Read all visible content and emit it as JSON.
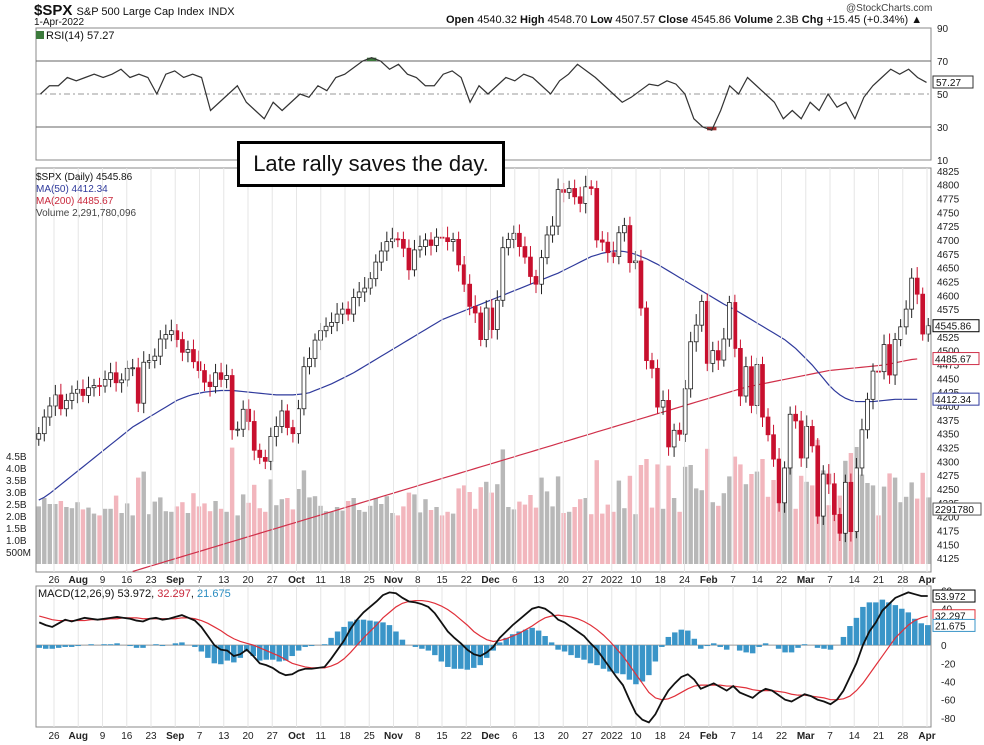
{
  "header": {
    "symbol": "$SPX",
    "name": "S&P 500 Large Cap Index",
    "exchange": "INDX",
    "date": "1-Apr-2022",
    "open_label": "Open",
    "open": "4540.32",
    "high_label": "High",
    "high": "4548.70",
    "low_label": "Low",
    "low": "4507.57",
    "close_label": "Close",
    "close": "4545.86",
    "volume_label": "Volume",
    "volume": "2.3B",
    "chg_label": "Chg",
    "chg": "+15.45 (+0.34%)",
    "chg_arrow": "▲",
    "copyright": "@StockCharts.com"
  },
  "annotation": "Late rally saves the day.",
  "rsi_panel": {
    "label": "RSI(14) 57.27",
    "value_box": "57.27"
  },
  "price_panel": {
    "legend_main": "$SPX (Daily) 4545.86",
    "legend_ma50": "MA(50) 4412.34",
    "legend_ma200": "MA(200) 4485.67",
    "legend_volume": "Volume 2,291,780,096",
    "box_close": "4545.86",
    "box_ma200": "4485.67",
    "box_ma50": "4412.34",
    "box_volume": "2291780"
  },
  "macd_panel": {
    "label_prefix": "MACD(12,26,9)",
    "macd": "53.972",
    "signal": "32.297",
    "hist": "21.675",
    "box_macd": "53.972",
    "box_signal": "32.297",
    "box_hist": "21.675"
  },
  "colors": {
    "up": "#ffffff",
    "down": "#c8102e",
    "ma50": "#2f3a9c",
    "ma200": "#d0304a",
    "vol_up": "#b8b8b8",
    "vol_down": "#f2b6bd",
    "macd_line": "#111111",
    "signal_line": "#e0303a",
    "hist": "#3a95c8",
    "rsi_fill_high": "#3c7a3c",
    "rsi_fill_low": "#a03030"
  },
  "chart_data": [
    {
      "type": "line",
      "panel": "rsi",
      "title": "RSI(14) 57.27",
      "ylim": [
        10,
        90
      ],
      "y_ticks": [
        "90",
        "70",
        "50",
        "30",
        "10"
      ],
      "reference_lines": [
        70,
        50,
        30
      ],
      "x_ticks": [],
      "values": [
        50,
        55,
        55,
        60,
        58,
        60,
        62,
        60,
        62,
        65,
        60,
        62,
        60,
        50,
        62,
        64,
        60,
        62,
        60,
        40,
        45,
        50,
        55,
        45,
        40,
        35,
        45,
        40,
        45,
        50,
        48,
        55,
        52,
        60,
        62,
        66,
        70,
        72,
        70,
        65,
        68,
        62,
        60,
        55,
        55,
        62,
        64,
        60,
        45,
        55,
        50,
        55,
        60,
        58,
        62,
        60,
        55,
        50,
        58,
        62,
        68,
        64,
        60,
        55,
        50,
        45,
        48,
        52,
        56,
        55,
        58,
        56,
        50,
        35,
        30,
        28,
        40,
        55,
        50,
        60,
        55,
        50,
        45,
        35,
        40,
        35,
        45,
        40,
        50,
        42,
        45,
        35,
        48,
        55,
        60,
        65,
        62,
        65,
        60,
        57
      ]
    },
    {
      "type": "candlestick",
      "panel": "price",
      "title": "$SPX (Daily) 4545.86",
      "ylim": [
        4100,
        4830
      ],
      "y_ticks": [
        "4825",
        "4800",
        "4775",
        "4750",
        "4725",
        "4700",
        "4675",
        "4650",
        "4625",
        "4600",
        "4575",
        "4550",
        "4525",
        "4500",
        "4475",
        "4450",
        "4425",
        "4400",
        "4375",
        "4350",
        "4325",
        "4300",
        "4275",
        "4250",
        "4225",
        "4200",
        "4175",
        "4150",
        "4125"
      ],
      "x_ticks": [
        "26",
        "Aug",
        "9",
        "16",
        "23",
        "Sep",
        "7",
        "13",
        "20",
        "27",
        "Oct",
        "11",
        "18",
        "25",
        "Nov",
        "8",
        "15",
        "22",
        "Dec",
        "6",
        "13",
        "20",
        "27",
        "2022",
        "10",
        "18",
        "24",
        "Feb",
        "7",
        "14",
        "22",
        "Mar",
        "7",
        "14",
        "21",
        "28",
        "Apr"
      ],
      "close": [
        4350,
        4380,
        4400,
        4420,
        4395,
        4410,
        4423,
        4430,
        4419,
        4433,
        4437,
        4436,
        4448,
        4460,
        4442,
        4447,
        4468,
        4469,
        4405,
        4479,
        4482,
        4490,
        4521,
        4529,
        4536,
        4520,
        4497,
        4502,
        4480,
        4464,
        4443,
        4435,
        4460,
        4448,
        4455,
        4357,
        4358,
        4394,
        4372,
        4320,
        4307,
        4300,
        4345,
        4363,
        4391,
        4361,
        4350,
        4395,
        4471,
        4486,
        4519,
        4536,
        4544,
        4551,
        4566,
        4575,
        4566,
        4596,
        4606,
        4613,
        4630,
        4660,
        4680,
        4697,
        4702,
        4701,
        4685,
        4646,
        4682,
        4688,
        4700,
        4690,
        4705,
        4704,
        4697,
        4701,
        4655,
        4620,
        4580,
        4568,
        4520,
        4577,
        4538,
        4591,
        4686,
        4701,
        4712,
        4688,
        4669,
        4634,
        4620,
        4668,
        4709,
        4725,
        4791,
        4786,
        4793,
        4778,
        4766,
        4796,
        4793,
        4700,
        4696,
        4677,
        4670,
        4713,
        4726,
        4659,
        4662,
        4577,
        4482,
        4468,
        4398,
        4410,
        4326,
        4356,
        4349,
        4431,
        4516,
        4546,
        4589,
        4477,
        4500,
        4483,
        4521,
        4587,
        4504,
        4418,
        4471,
        4401,
        4475,
        4380,
        4348,
        4304,
        4225,
        4288,
        4385,
        4373,
        4306,
        4363,
        4328,
        4201,
        4277,
        4259,
        4204,
        4170,
        4262,
        4173,
        4288,
        4357,
        4412,
        4463,
        4462,
        4511,
        4456,
        4520,
        4543,
        4575,
        4631,
        4602,
        4530,
        4545
      ],
      "ma50": [
        4230,
        4235,
        4242,
        4250,
        4258,
        4266,
        4274,
        4282,
        4290,
        4298,
        4306,
        4314,
        4322,
        4330,
        4338,
        4346,
        4354,
        4362,
        4368,
        4374,
        4380,
        4386,
        4392,
        4398,
        4404,
        4410,
        4414,
        4418,
        4421,
        4423,
        4425,
        4426,
        4427,
        4428,
        4428,
        4428,
        4427,
        4426,
        4425,
        4424,
        4423,
        4422,
        4421,
        4420,
        4420,
        4420,
        4420,
        4421,
        4422,
        4424,
        4428,
        4432,
        4436,
        4440,
        4445,
        4450,
        4455,
        4460,
        4466,
        4472,
        4478,
        4484,
        4490,
        4496,
        4502,
        4508,
        4514,
        4520,
        4526,
        4532,
        4538,
        4544,
        4550,
        4556,
        4560,
        4564,
        4568,
        4572,
        4576,
        4580,
        4584,
        4588,
        4592,
        4596,
        4600,
        4604,
        4608,
        4612,
        4616,
        4620,
        4624,
        4628,
        4632,
        4636,
        4640,
        4645,
        4650,
        4655,
        4660,
        4665,
        4670,
        4673,
        4676,
        4678,
        4680,
        4680,
        4679,
        4677,
        4674,
        4670,
        4666,
        4661,
        4656,
        4650,
        4644,
        4638,
        4632,
        4626,
        4620,
        4614,
        4608,
        4602,
        4596,
        4590,
        4584,
        4579,
        4574,
        4568,
        4562,
        4556,
        4550,
        4544,
        4538,
        4532,
        4526,
        4520,
        4512,
        4504,
        4494,
        4484,
        4474,
        4462,
        4450,
        4438,
        4428,
        4420,
        4414,
        4410,
        4408,
        4408,
        4408,
        4408,
        4409,
        4410,
        4411,
        4412,
        4412,
        4412,
        4412,
        4412
      ],
      "ma200": [
        4050,
        4053,
        4056,
        4059,
        4062,
        4065,
        4068,
        4071,
        4074,
        4077,
        4080,
        4083,
        4086,
        4089,
        4092,
        4095,
        4098,
        4101,
        4104,
        4107,
        4110,
        4113,
        4116,
        4119,
        4122,
        4125,
        4128,
        4131,
        4134,
        4137,
        4140,
        4143,
        4146,
        4149,
        4152,
        4155,
        4158,
        4161,
        4164,
        4167,
        4170,
        4173,
        4176,
        4179,
        4182,
        4185,
        4188,
        4191,
        4194,
        4197,
        4200,
        4203,
        4206,
        4209,
        4212,
        4215,
        4218,
        4221,
        4224,
        4227,
        4230,
        4233,
        4236,
        4239,
        4242,
        4245,
        4248,
        4251,
        4254,
        4257,
        4260,
        4263,
        4266,
        4269,
        4272,
        4275,
        4278,
        4281,
        4284,
        4287,
        4290,
        4293,
        4296,
        4299,
        4302,
        4305,
        4308,
        4311,
        4314,
        4317,
        4320,
        4323,
        4326,
        4329,
        4332,
        4335,
        4338,
        4341,
        4344,
        4347,
        4350,
        4353,
        4356,
        4359,
        4362,
        4365,
        4368,
        4371,
        4374,
        4377,
        4380,
        4383,
        4386,
        4389,
        4392,
        4395,
        4398,
        4401,
        4404,
        4407,
        4410,
        4413,
        4416,
        4419,
        4422,
        4425,
        4428,
        4431,
        4434,
        4436,
        4438,
        4440,
        4442,
        4444,
        4446,
        4448,
        4450,
        4452,
        4454,
        4456,
        4458,
        4460,
        4462,
        4464,
        4465,
        4466,
        4467,
        4468,
        4469,
        4470,
        4471,
        4472,
        4473,
        4474,
        4476,
        4478,
        4480,
        4482,
        4484,
        4485
      ],
      "volume_ylim": [
        0,
        5.5
      ],
      "volume_ticks": [
        "4.5B",
        "4.0B",
        "3.5B",
        "3.0B",
        "2.5B",
        "2.0B",
        "1.5B",
        "1.0B",
        "500M"
      ]
    },
    {
      "type": "line",
      "panel": "macd",
      "title": "MACD(12,26,9) 53.972, 32.297, 21.675",
      "ylim": [
        -90,
        65
      ],
      "y_ticks": [
        "60",
        "40",
        "20",
        "0",
        "-20",
        "-40",
        "-60",
        "-80"
      ],
      "x_ticks": [
        "26",
        "Aug",
        "9",
        "16",
        "23",
        "Sep",
        "7",
        "13",
        "20",
        "27",
        "Oct",
        "11",
        "18",
        "25",
        "Nov",
        "8",
        "15",
        "22",
        "Dec",
        "6",
        "13",
        "20",
        "27",
        "2022",
        "10",
        "18",
        "24",
        "Feb",
        "7",
        "14",
        "22",
        "Mar",
        "7",
        "14",
        "21",
        "28",
        "Apr"
      ],
      "series": [
        {
          "name": "MACD(12,26,9)",
          "values": [
            25,
            22,
            20,
            24,
            28,
            26,
            28,
            30,
            29,
            28,
            29,
            30,
            31,
            30,
            29,
            27,
            26,
            29,
            30,
            28,
            29,
            31,
            33,
            30,
            27,
            20,
            10,
            0,
            -5,
            -6,
            -12,
            -10,
            -5,
            -12,
            -20,
            -22,
            -25,
            -30,
            -33,
            -32,
            -28,
            -26,
            -26,
            -25,
            -24,
            -15,
            -5,
            5,
            18,
            28,
            36,
            42,
            48,
            55,
            58,
            57,
            52,
            48,
            47,
            45,
            42,
            35,
            25,
            15,
            8,
            2,
            -5,
            -10,
            -12,
            -8,
            -2,
            8,
            15,
            22,
            28,
            34,
            40,
            42,
            40,
            35,
            28,
            25,
            20,
            15,
            10,
            2,
            -5,
            -15,
            -25,
            -35,
            -44,
            -60,
            -75,
            -82,
            -85,
            -76,
            -62,
            -50,
            -42,
            -35,
            -32,
            -38,
            -48,
            -45,
            -42,
            -46,
            -50,
            -45,
            -52,
            -55,
            -58,
            -52,
            -48,
            -50,
            -55,
            -60,
            -62,
            -58,
            -54,
            -56,
            -60,
            -62,
            -65,
            -60,
            -50,
            -35,
            -20,
            0,
            15,
            25,
            38,
            45,
            52,
            55,
            58,
            56,
            54,
            54
          ]
        },
        {
          "name": "",
          "values": [
            32,
            30,
            28,
            27,
            27,
            27,
            27,
            27,
            28,
            28,
            28,
            29,
            29,
            30,
            30,
            30,
            29,
            29,
            29,
            29,
            29,
            29,
            30,
            30,
            29,
            27,
            24,
            20,
            16,
            11,
            7,
            4,
            2,
            0,
            -3,
            -6,
            -9,
            -12,
            -16,
            -20,
            -22,
            -24,
            -25,
            -25,
            -25,
            -23,
            -20,
            -15,
            -8,
            0,
            8,
            15,
            22,
            30,
            36,
            42,
            46,
            48,
            49,
            49,
            48,
            46,
            43,
            39,
            34,
            28,
            22,
            15,
            10,
            6,
            4,
            5,
            7,
            10,
            13,
            17,
            21,
            26,
            30,
            32,
            33,
            32,
            31,
            29,
            26,
            22,
            17,
            11,
            4,
            -4,
            -12,
            -22,
            -32,
            -42,
            -52,
            -58,
            -60,
            -59,
            -56,
            -52,
            -48,
            -45,
            -44,
            -44,
            -44,
            -44,
            -45,
            -45,
            -46,
            -47,
            -49,
            -50,
            -50,
            -50,
            -51,
            -52,
            -54,
            -55,
            -55,
            -56,
            -57,
            -58,
            -60,
            -60,
            -59,
            -56,
            -50,
            -42,
            -32,
            -22,
            -12,
            -2,
            8,
            15,
            22,
            27,
            30,
            32
          ]
        }
      ],
      "histogram": [
        -3,
        -4,
        -4,
        -3,
        -2,
        -2,
        -1,
        0,
        1,
        0,
        1,
        1,
        2,
        0,
        -1,
        -3,
        -3,
        0,
        1,
        -1,
        0,
        2,
        3,
        0,
        -2,
        -7,
        -14,
        -20,
        -21,
        -17,
        -19,
        -14,
        -7,
        -12,
        -17,
        -16,
        -16,
        -18,
        -17,
        -12,
        -6,
        -2,
        -1,
        0,
        1,
        8,
        15,
        20,
        26,
        28,
        28,
        27,
        26,
        25,
        22,
        15,
        6,
        0,
        -2,
        -4,
        -6,
        -11,
        -18,
        -24,
        -26,
        -26,
        -27,
        -25,
        -22,
        -14,
        -6,
        3,
        8,
        12,
        15,
        17,
        19,
        16,
        10,
        3,
        -5,
        -7,
        -11,
        -14,
        -16,
        -20,
        -22,
        -26,
        -29,
        -31,
        -32,
        -38,
        -43,
        -40,
        -33,
        -18,
        -2,
        9,
        14,
        17,
        16,
        7,
        -4,
        -1,
        2,
        -2,
        -5,
        0,
        -6,
        -8,
        -9,
        -2,
        2,
        0,
        -4,
        -8,
        -8,
        -3,
        1,
        0,
        -3,
        -4,
        -5,
        0,
        9,
        21,
        30,
        42,
        47,
        47,
        50,
        47,
        44,
        40,
        36,
        29,
        24,
        22
      ]
    }
  ]
}
